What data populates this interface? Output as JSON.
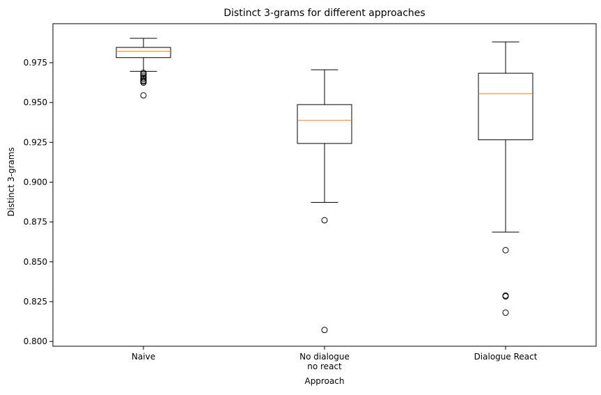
{
  "chart_data": {
    "type": "boxplot",
    "title": "Distinct 3-grams for different approaches",
    "xlabel": "Approach",
    "ylabel": "Distinct 3-grams",
    "ylim": [
      0.797,
      0.9995
    ],
    "yticks": [
      0.8,
      0.825,
      0.85,
      0.875,
      0.9,
      0.925,
      0.95,
      0.975
    ],
    "ytick_labels": [
      "0.800",
      "0.825",
      "0.850",
      "0.875",
      "0.900",
      "0.925",
      "0.950",
      "0.975"
    ],
    "grid": false,
    "categories": [
      [
        "Naive"
      ],
      [
        "No dialogue",
        "no react"
      ],
      [
        "Dialogue React"
      ]
    ],
    "boxes": [
      {
        "whisker_low": 0.9696,
        "q1": 0.9782,
        "median": 0.9822,
        "q3": 0.9846,
        "whisker_high": 0.9903,
        "outliers": [
          0.9545,
          0.9625,
          0.9632,
          0.9638,
          0.9648,
          0.9658,
          0.9668,
          0.9678,
          0.9686
        ]
      },
      {
        "whisker_low": 0.8873,
        "q1": 0.9243,
        "median": 0.9388,
        "q3": 0.9487,
        "whisker_high": 0.9706,
        "outliers": [
          0.8761,
          0.8072
        ]
      },
      {
        "whisker_low": 0.8687,
        "q1": 0.9266,
        "median": 0.9555,
        "q3": 0.9684,
        "whisker_high": 0.9881,
        "outliers": [
          0.8573,
          0.8288,
          0.8283,
          0.8181
        ]
      }
    ],
    "colors": {
      "box": "#000000",
      "median": "#ff7f0e",
      "outlier": "#000000"
    }
  }
}
